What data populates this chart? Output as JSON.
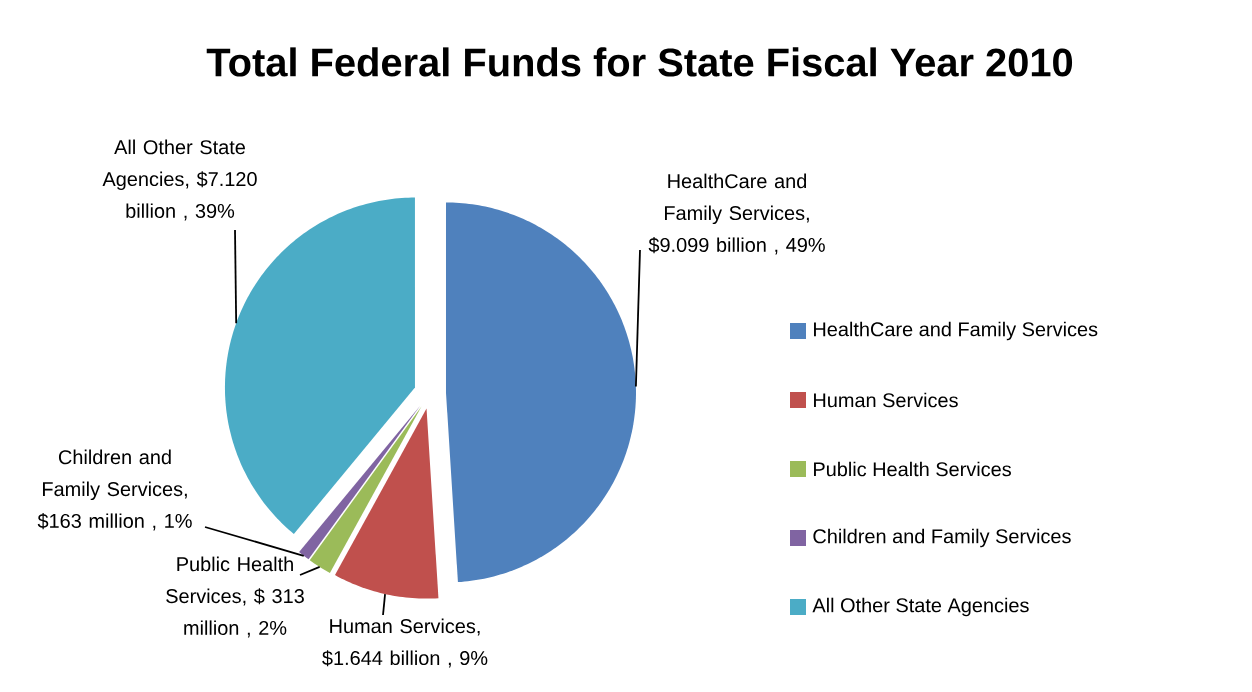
{
  "chart_data": {
    "type": "pie",
    "title": "Total Federal Funds for State Fiscal Year 2010",
    "categories": [
      "HealthCare and Family Services",
      "Human Services",
      "Public Health Services",
      "Children and Family Services",
      "All Other State Agencies"
    ],
    "values": [
      49,
      9,
      2,
      1,
      39
    ],
    "value_labels": [
      "HealthCare and Family Services, $9.099 billion , 49%",
      "Human Services, $1.644 billion , 9%",
      "Public Health Services, $ 313 million , 2%",
      "Children and Family Services, $163 million , 1%",
      "All Other State Agencies, $7.120 billion , 39%"
    ],
    "colors": [
      "#4f81bd",
      "#c0504d",
      "#9bbb59",
      "#8064a2",
      "#4bacc6"
    ],
    "legend": "right"
  }
}
